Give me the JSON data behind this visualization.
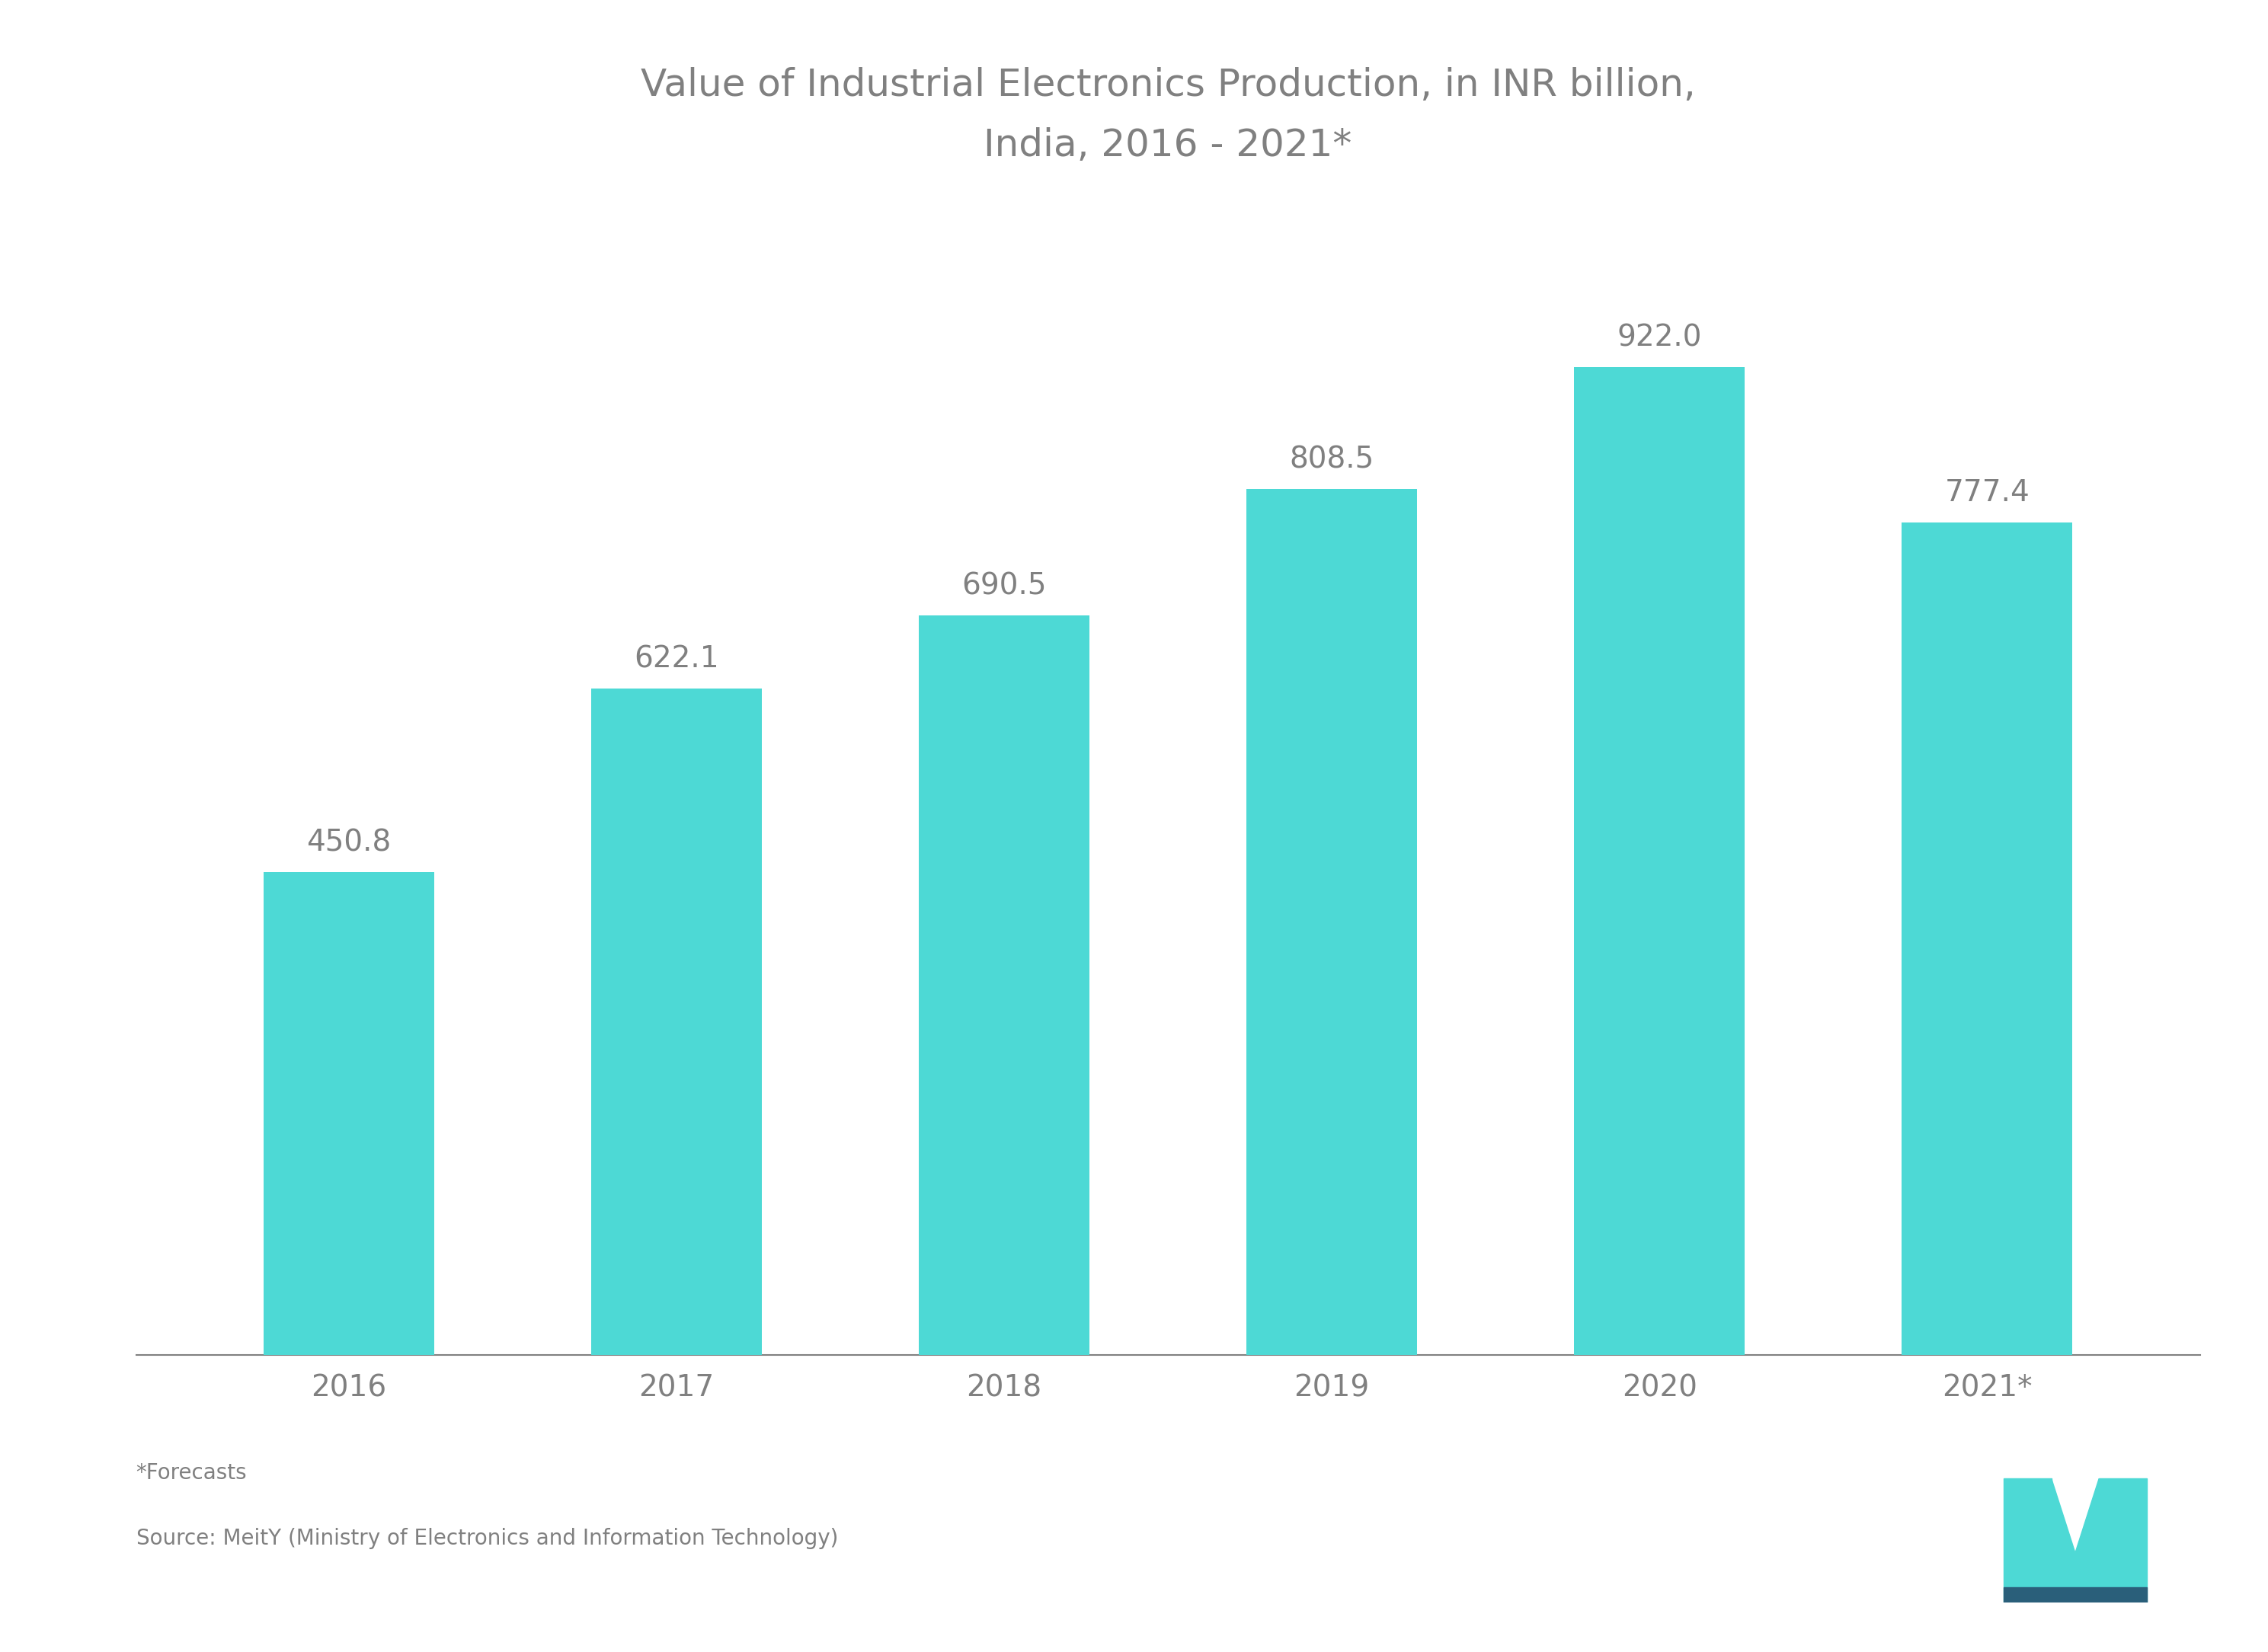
{
  "title_line1": "Value of Industrial Electronics Production, in INR billion,",
  "title_line2": "India, 2016 - 2021*",
  "categories": [
    "2016",
    "2017",
    "2018",
    "2019",
    "2020",
    "2021*"
  ],
  "values": [
    450.8,
    622.1,
    690.5,
    808.5,
    922.0,
    777.4
  ],
  "bar_color": "#4DD9D5",
  "background_color": "#ffffff",
  "text_color": "#808080",
  "title_color": "#808080",
  "label_color": "#808080",
  "footnote_line1": "*Forecasts",
  "footnote_line2": "Source: MeitY (Ministry of Electronics and Information Technology)",
  "ylim": [
    0,
    1080
  ],
  "bar_width": 0.52,
  "label_fontsize": 28,
  "title_fontsize": 36,
  "tick_fontsize": 28,
  "footnote_fontsize": 20,
  "logo_color": "#4DD9D5",
  "logo_dark_color": "#2a6496"
}
